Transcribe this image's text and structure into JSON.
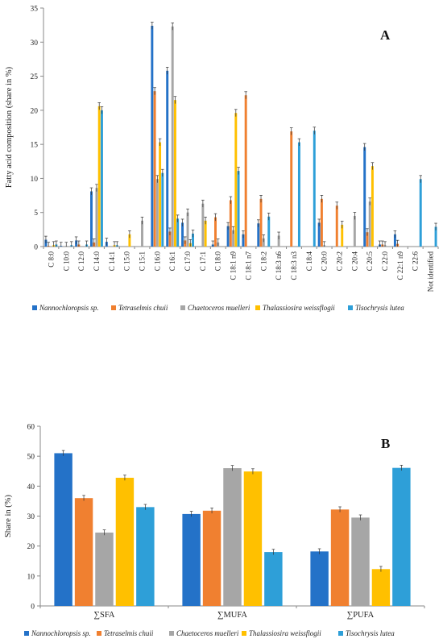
{
  "series_colors": [
    "#2472c8",
    "#f08030",
    "#a6a6a6",
    "#ffc000",
    "#2e9fd8"
  ],
  "chart_data": [
    {
      "panel": "A",
      "type": "bar",
      "ylabel": "Fatty acid composition (share in %)",
      "ylim": [
        0,
        35
      ],
      "yticks": [
        0,
        5,
        10,
        15,
        20,
        25,
        30,
        35
      ],
      "grid": false,
      "legend_position": "bottom",
      "categories": [
        "C 8:0",
        "C 10:0",
        "C 12:0",
        "C 14:0",
        "C 14:1",
        "C 15:0",
        "C 15:1",
        "C 16:0",
        "C 16:1",
        "C 17:0",
        "C 17:1",
        "C 18:0",
        "C 18:1 n9",
        "C 18:1 n7",
        "C 18:2",
        "C 18:3 n6",
        "C 18:3 n3",
        "C 18:4",
        "C 20:0",
        "C 20:2",
        "C 20:4",
        "C 20:5",
        "C 22:0",
        "C 22:1 n9",
        "C 22:6",
        "Not identified"
      ],
      "series": [
        {
          "name": "Nannochloropsis sp.",
          "values": [
            1.0,
            0.1,
            0.9,
            8.1,
            0.7,
            0,
            0,
            32.4,
            25.8,
            3.5,
            0,
            0.3,
            3.0,
            1.8,
            3.4,
            0,
            0,
            0,
            3.5,
            0,
            0,
            14.6,
            0.3,
            1.8,
            0,
            0
          ]
        },
        {
          "name": "Tetraselmis chuii",
          "values": [
            0.1,
            0,
            0.3,
            0.6,
            0,
            0,
            0,
            22.8,
            2.2,
            0.9,
            0,
            4.3,
            6.8,
            22.2,
            7.0,
            0,
            16.9,
            0,
            7.0,
            6.0,
            0,
            2.1,
            0.3,
            0.4,
            0,
            0
          ]
        },
        {
          "name": "Chaetoceros muelleri",
          "values": [
            0,
            0.1,
            0,
            8.6,
            0,
            0,
            3.8,
            9.9,
            32.3,
            5.0,
            6.3,
            0.6,
            2.4,
            0,
            1.2,
            1.6,
            0,
            0,
            0.2,
            0,
            4.5,
            6.6,
            0.2,
            0,
            0,
            0
          ]
        },
        {
          "name": "Thalassiosira weissflogii",
          "values": [
            0.2,
            0,
            0,
            20.6,
            0.2,
            1.8,
            0,
            15.3,
            21.5,
            0.5,
            3.8,
            0,
            19.6,
            0,
            0,
            0,
            0,
            0,
            0,
            3.2,
            0,
            11.8,
            0,
            0,
            0,
            0
          ]
        },
        {
          "name": "Tisochrysis lutea",
          "values": [
            0.3,
            0.2,
            0.3,
            20.0,
            0.2,
            0,
            0,
            10.8,
            4.1,
            1.9,
            0,
            0,
            11.1,
            0,
            4.4,
            0,
            15.3,
            17.0,
            0,
            0,
            0,
            0,
            0,
            0,
            9.9,
            2.9
          ]
        }
      ]
    },
    {
      "panel": "B",
      "type": "bar",
      "ylabel": "Share in (%)",
      "ylim": [
        0,
        60
      ],
      "yticks": [
        0,
        10,
        20,
        30,
        40,
        50,
        60
      ],
      "grid": false,
      "legend_position": "bottom",
      "categories": [
        "∑SFA",
        "∑MUFA",
        "∑PUFA"
      ],
      "series": [
        {
          "name": "Nannochloropsis sp.",
          "values": [
            51.0,
            30.7,
            18.2
          ]
        },
        {
          "name": "Tetraselmis chuii",
          "values": [
            36.0,
            31.8,
            32.2
          ]
        },
        {
          "name": "Chaetoceros muelleri",
          "values": [
            24.5,
            46.0,
            29.5
          ]
        },
        {
          "name": "Thalassiosira weissflogii",
          "values": [
            42.8,
            44.9,
            12.3
          ]
        },
        {
          "name": "Tisochrysis lutea",
          "values": [
            33.0,
            18.0,
            46.1
          ]
        }
      ]
    }
  ]
}
